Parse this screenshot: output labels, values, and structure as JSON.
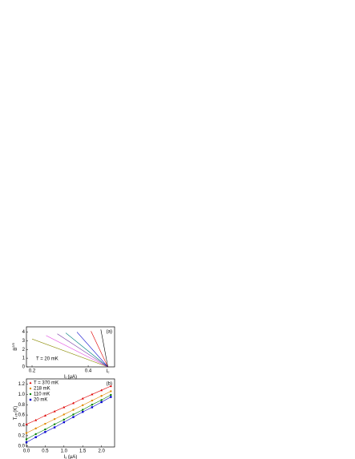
{
  "chart_data": [
    {
      "type": "line",
      "panel_label": "(a)",
      "annotation": "T = 20 mK",
      "ylabel": "B",
      "ylabel_sup": "2/3",
      "xlabel": "I",
      "xlabel_sub": "r",
      "xlabel_unit": "(μA)",
      "ic_label": "I",
      "ic_sub": "c",
      "ic_value": 0.47,
      "xlim": [
        0.18,
        0.494
      ],
      "ylim": [
        0,
        4.6
      ],
      "xticks": [
        0.2,
        0.4
      ],
      "yticks": [
        0,
        1,
        2,
        3,
        4
      ],
      "series": [
        {
          "color": "#8a8a00",
          "x": [
            0.2,
            0.47
          ],
          "values": [
            3.2,
            0
          ]
        },
        {
          "color": "#e040e0",
          "x": [
            0.25,
            0.47
          ],
          "values": [
            3.6,
            0
          ]
        },
        {
          "color": "#7030a0",
          "x": [
            0.29,
            0.47
          ],
          "values": [
            3.8,
            0
          ]
        },
        {
          "color": "#008080",
          "x": [
            0.32,
            0.47
          ],
          "values": [
            3.9,
            0
          ]
        },
        {
          "color": "#0000cc",
          "x": [
            0.36,
            0.47
          ],
          "values": [
            4.0,
            0
          ]
        },
        {
          "color": "#e00000",
          "x": [
            0.41,
            0.47
          ],
          "values": [
            4.1,
            0
          ]
        },
        {
          "color": "#000000",
          "x": [
            0.445,
            0.47
          ],
          "values": [
            4.3,
            0
          ]
        }
      ]
    },
    {
      "type": "scatter",
      "panel_label": "(b)",
      "ylabel": "T",
      "ylabel_sub": "eff",
      "ylabel_unit": "(K)",
      "xlabel": "I",
      "xlabel_sub": "s",
      "xlabel_unit": "(μA)",
      "xlim": [
        0,
        2.35
      ],
      "ylim": [
        -0.02,
        1.3
      ],
      "xticks": [
        {
          "value": 0,
          "label": "0.0"
        },
        0.5,
        {
          "value": 1,
          "label": "1.0"
        },
        1.5,
        {
          "value": 2,
          "label": "2.0"
        }
      ],
      "yticks": [
        {
          "value": 0,
          "label": "0.0"
        },
        0.2,
        0.4,
        0.6,
        0.8,
        {
          "value": 1,
          "label": "1.0"
        },
        1.2
      ],
      "x": [
        0,
        0.25,
        0.5,
        0.75,
        1,
        1.25,
        1.5,
        1.75,
        2,
        2.25
      ],
      "series": [
        {
          "name": "T = 370 mK",
          "color": "#e00000",
          "marker": "triangle",
          "values": [
            0.42,
            0.5,
            0.59,
            0.67,
            0.75,
            0.83,
            0.92,
            1.0,
            1.08,
            1.16
          ]
        },
        {
          "name": "218 mK",
          "color": "#e08a00",
          "marker": "circle",
          "values": [
            0.25,
            0.34,
            0.43,
            0.52,
            0.61,
            0.7,
            0.79,
            0.88,
            0.97,
            1.06
          ]
        },
        {
          "name": "110 mK",
          "color": "#008000",
          "marker": "circle",
          "values": [
            0.13,
            0.23,
            0.32,
            0.42,
            0.51,
            0.61,
            0.7,
            0.8,
            0.89,
            0.99
          ]
        },
        {
          "name": "20 mK",
          "color": "#0000cc",
          "marker": "square",
          "values": [
            0.07,
            0.17,
            0.27,
            0.36,
            0.46,
            0.56,
            0.66,
            0.75,
            0.85,
            0.95
          ]
        }
      ]
    }
  ]
}
